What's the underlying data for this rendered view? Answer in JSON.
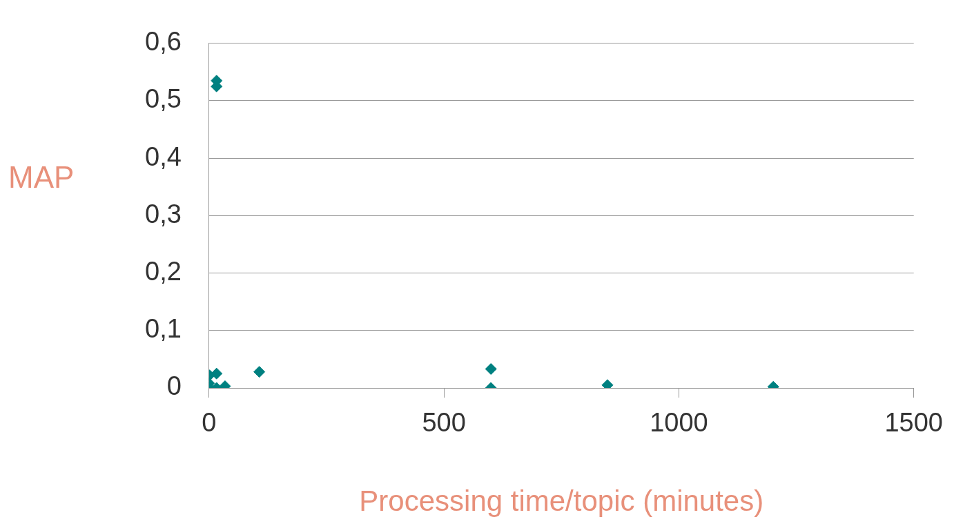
{
  "chart_data": {
    "type": "scatter",
    "xlabel": "Processing time/topic (minutes)",
    "ylabel": "MAP",
    "x": [
      16,
      16,
      1,
      16,
      0,
      0,
      16,
      34,
      107,
      600,
      600,
      848,
      1201
    ],
    "values": [
      0.535,
      0.525,
      0.022,
      0.025,
      0.008,
      0.001,
      0,
      0.003,
      0.028,
      0.033,
      0,
      0.005,
      0.002
    ],
    "color": "#008080",
    "marker": "diamond",
    "grid": "y",
    "xlim": [
      0,
      1500
    ],
    "xticks": [
      0,
      500,
      1000,
      1500
    ],
    "ylim": [
      0,
      0.6
    ],
    "yticks": [
      0,
      {
        "value": 0.1,
        "label": "0,1"
      },
      {
        "value": 0.2,
        "label": "0,2"
      },
      {
        "value": 0.3,
        "label": "0,3"
      },
      {
        "value": 0.4,
        "label": "0,4"
      },
      {
        "value": 0.5,
        "label": "0,5"
      },
      {
        "value": 0.6,
        "label": "0,6"
      }
    ]
  }
}
